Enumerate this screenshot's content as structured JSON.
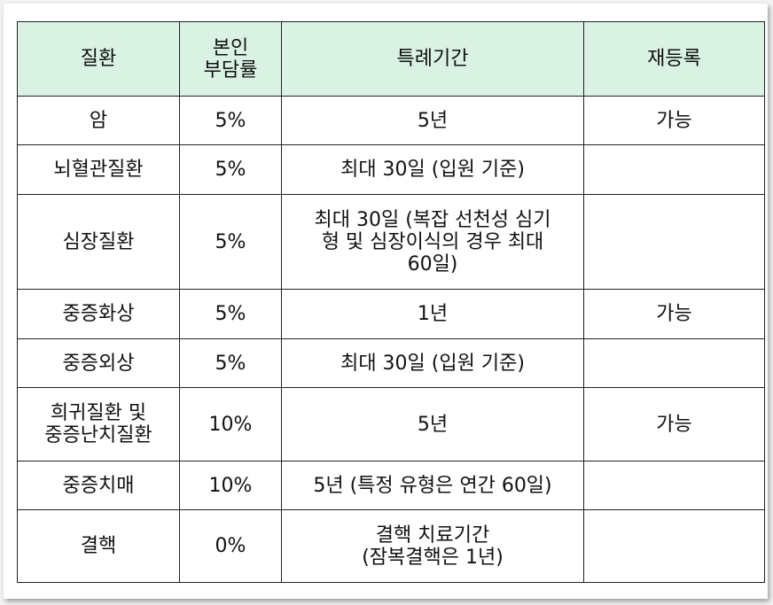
{
  "header": {
    "disease": "질환",
    "copay": "본인\n부담률",
    "period": "특례기간",
    "reregister": "재등록"
  },
  "rows": [
    {
      "disease": "암",
      "copay": "5%",
      "period": "5년",
      "reregister": "가능"
    },
    {
      "disease": "뇌혈관질환",
      "copay": "5%",
      "period": "최대 30일 (입원 기준)",
      "reregister": ""
    },
    {
      "disease": "심장질환",
      "copay": "5%",
      "period": "최대 30일 (복잡 선천성 심기\n형 및 심장이식의 경우 최대\n60일)",
      "reregister": ""
    },
    {
      "disease": "중증화상",
      "copay": "5%",
      "period": "1년",
      "reregister": "가능"
    },
    {
      "disease": "중증외상",
      "copay": "5%",
      "period": "최대 30일 (입원 기준)",
      "reregister": ""
    },
    {
      "disease": "희귀질환 및\n중증난치질환",
      "copay": "10%",
      "period": "5년",
      "reregister": "가능"
    },
    {
      "disease": "중증치매",
      "copay": "10%",
      "period": "5년 (특정 유형은 연간 60일)",
      "reregister": ""
    },
    {
      "disease": "결핵",
      "copay": "0%",
      "period": "결핵 치료기간\n(잠복결핵은 1년)",
      "reregister": ""
    }
  ]
}
